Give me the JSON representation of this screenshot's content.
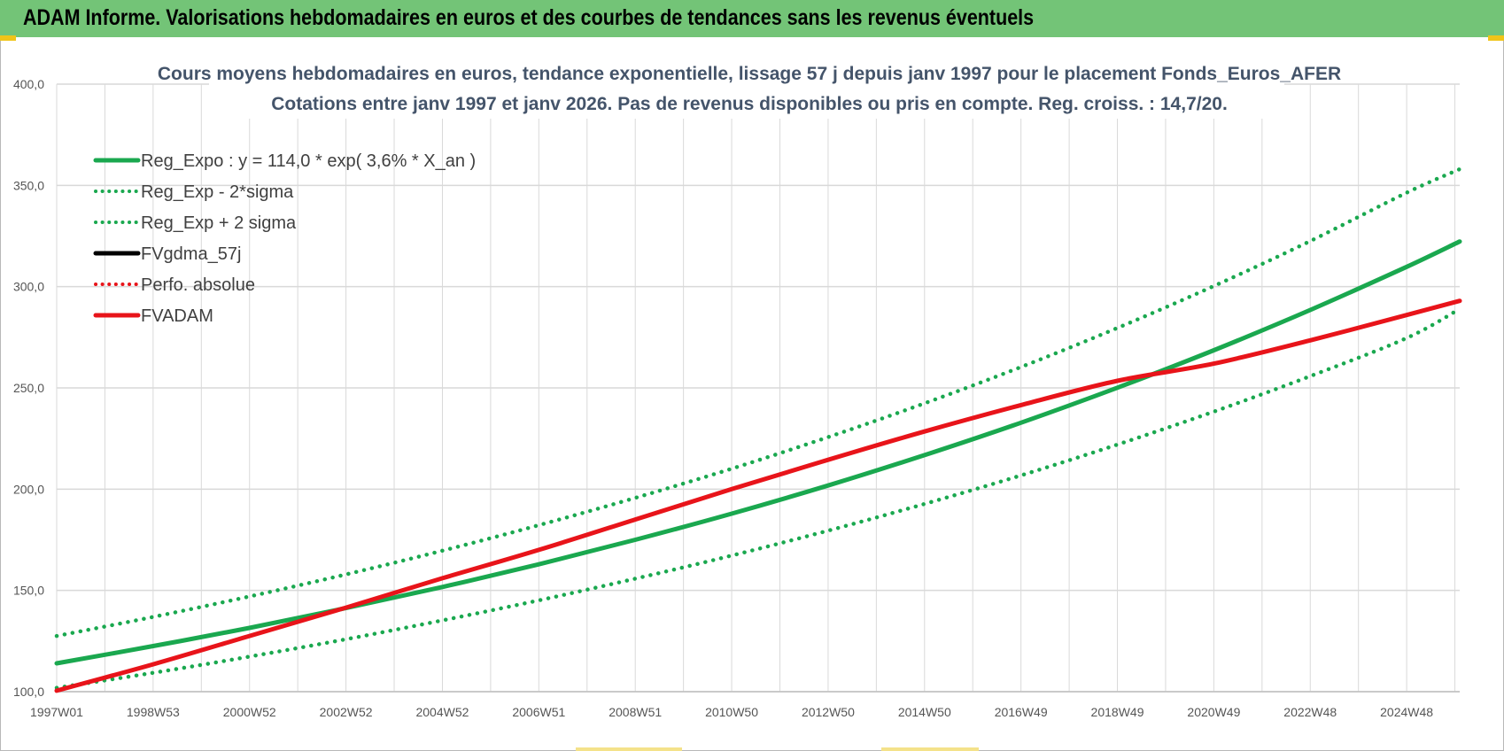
{
  "page_title": "ADAM Informe. Valorisations hebdomadaires en euros et des courbes de tendances sans les revenus éventuels",
  "colors": {
    "banner": "#73c477",
    "reg_green": "#1aa84f",
    "fvadam_red": "#e8141a",
    "perfo_red": "#e8141a",
    "fvgdma_black": "#000000",
    "grid": "#d9d9d9"
  },
  "chart_data": {
    "type": "line",
    "title_line1": "Cours moyens hebdomadaires en euros, tendance exponentielle, lissage 57 j depuis janv 1997  pour le placement Fonds_Euros_AFER",
    "title_line2": "Cotations entre janv 1997 et janv 2026. Pas de revenus disponibles ou pris en compte. Reg. croiss. : 14,7/20.",
    "xlabel": "",
    "ylabel": "",
    "ylim": [
      100,
      400
    ],
    "xlim_years": [
      1997.0,
      2026.1
    ],
    "y_ticks": [
      "100,0",
      "150,0",
      "200,0",
      "250,0",
      "300,0",
      "350,0",
      "400,0"
    ],
    "x_ticks": [
      {
        "label": "1997W01",
        "year": 1997.0
      },
      {
        "label": "1998W53",
        "year": 1999.0
      },
      {
        "label": "2000W52",
        "year": 2001.0
      },
      {
        "label": "2002W52",
        "year": 2003.0
      },
      {
        "label": "2004W52",
        "year": 2005.0
      },
      {
        "label": "2006W51",
        "year": 2007.0
      },
      {
        "label": "2008W51",
        "year": 2009.0
      },
      {
        "label": "2010W50",
        "year": 2011.0
      },
      {
        "label": "2012W50",
        "year": 2013.0
      },
      {
        "label": "2014W50",
        "year": 2015.0
      },
      {
        "label": "2016W49",
        "year": 2017.0
      },
      {
        "label": "2018W49",
        "year": 2019.0
      },
      {
        "label": "2020W49",
        "year": 2021.0
      },
      {
        "label": "2022W48",
        "year": 2023.0
      },
      {
        "label": "2024W48",
        "year": 2025.0
      }
    ],
    "grid": true,
    "legend_position": "top-left",
    "series": [
      {
        "name": "Reg_Expo : y = 114,0 * exp( 3,6% *  X_an )",
        "style": "solid",
        "color": "#1aa84f",
        "x": [
          1997,
          1999,
          2001,
          2003,
          2005,
          2007,
          2009,
          2011,
          2013,
          2015,
          2017,
          2019,
          2021,
          2023,
          2025,
          2026.1
        ],
        "y": [
          114.0,
          122.5,
          131.5,
          141.3,
          151.7,
          162.9,
          175.0,
          187.9,
          201.8,
          216.8,
          232.8,
          250.1,
          268.6,
          288.5,
          309.8,
          322.3
        ]
      },
      {
        "name": "Reg_Exp - 2*sigma",
        "style": "dotted",
        "color": "#1aa84f",
        "x": [
          1997,
          1999,
          2001,
          2003,
          2005,
          2007,
          2009,
          2011,
          2013,
          2015,
          2017,
          2019,
          2021,
          2023,
          2025,
          2026.1
        ],
        "y": [
          101.9,
          109.3,
          117.3,
          125.9,
          135.2,
          145.1,
          155.8,
          167.2,
          179.5,
          192.7,
          206.8,
          222.0,
          238.3,
          255.8,
          274.6,
          289.0
        ]
      },
      {
        "name": "Reg_Exp + 2 sigma",
        "style": "dotted",
        "color": "#1aa84f",
        "x": [
          1997,
          1999,
          2001,
          2003,
          2005,
          2007,
          2009,
          2011,
          2013,
          2015,
          2017,
          2019,
          2021,
          2023,
          2025,
          2026.1
        ],
        "y": [
          127.5,
          136.9,
          147.0,
          157.9,
          169.6,
          182.2,
          195.7,
          210.1,
          225.7,
          242.4,
          260.3,
          279.6,
          300.3,
          322.5,
          346.4,
          358.0
        ]
      },
      {
        "name": "FVgdma_57j",
        "style": "solid",
        "color": "#000000",
        "x": [],
        "y": []
      },
      {
        "name": "Perfo. absolue",
        "style": "dotted",
        "color": "#e8141a",
        "x": [],
        "y": []
      },
      {
        "name": "FVADAM",
        "style": "solid",
        "color": "#e8141a",
        "x": [
          1997,
          1999,
          2001,
          2003,
          2005,
          2007,
          2009,
          2011,
          2013,
          2015,
          2017,
          2019,
          2021,
          2023,
          2025,
          2026.1
        ],
        "y": [
          100.5,
          113.5,
          127.5,
          141.5,
          156.0,
          170.0,
          185.0,
          200.0,
          214.5,
          228.5,
          241.5,
          253.5,
          262.0,
          273.5,
          286.0,
          293.0
        ]
      }
    ]
  }
}
